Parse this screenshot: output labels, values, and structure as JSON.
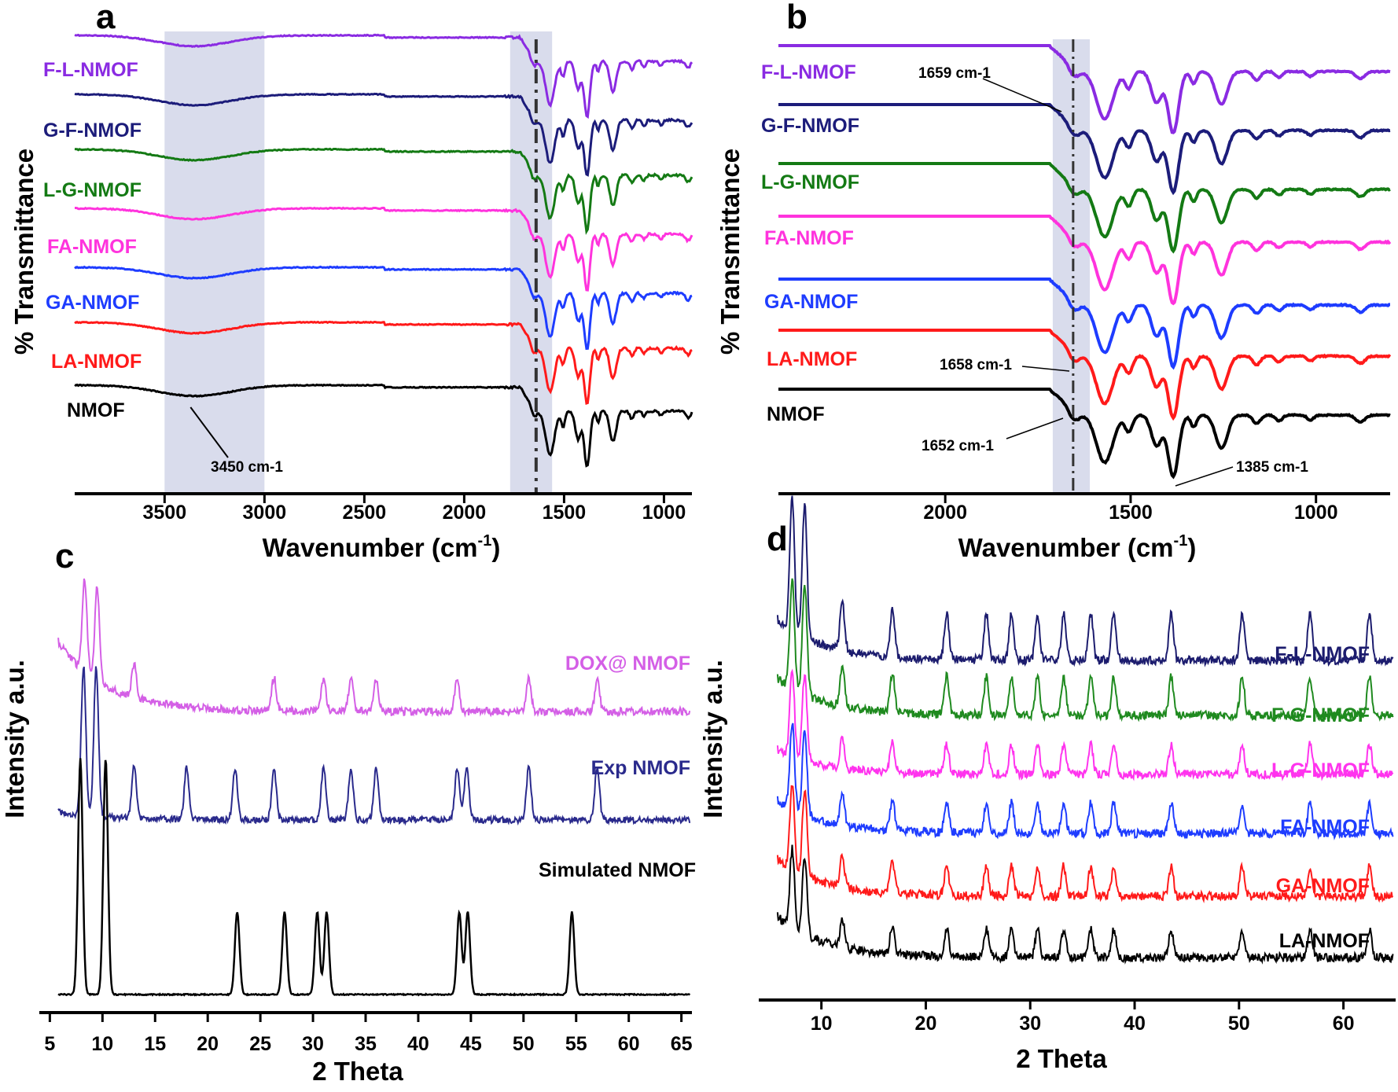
{
  "chart_data": [
    {
      "panel": "a",
      "type": "line",
      "xlabel": "Wavenumber (cm-1)",
      "ylabel": "% Transmittance",
      "xlim": [
        3950,
        860
      ],
      "x_reversed": true,
      "x_ticks": [
        3500,
        3000,
        2500,
        2000,
        1500,
        1000
      ],
      "shaded_regions": [
        [
          3500,
          3000
        ],
        [
          1770,
          1560
        ]
      ],
      "dashed_line_x": 1640,
      "annotations": [
        {
          "text": "3450 cm-1",
          "x": 3370,
          "series": "NMOF"
        }
      ],
      "series": [
        {
          "name": "F-L-NMOF",
          "color": "#8a2be2"
        },
        {
          "name": "G-F-NMOF",
          "color": "#1c1c7a"
        },
        {
          "name": "L-G-NMOF",
          "color": "#147a14"
        },
        {
          "name": "FA-NMOF",
          "color": "#ff33dd"
        },
        {
          "name": "GA-NMOF",
          "color": "#1e3cff"
        },
        {
          "name": "LA-NMOF",
          "color": "#ff1a1a"
        },
        {
          "name": "NMOF",
          "color": "#000000"
        }
      ]
    },
    {
      "panel": "b",
      "type": "line",
      "xlabel": "Wavenumber (cm-1)",
      "ylabel": "% Transmittance",
      "xlim": [
        2450,
        800
      ],
      "x_reversed": true,
      "x_ticks": [
        2000,
        1500,
        1000
      ],
      "shaded_regions": [
        [
          1710,
          1610
        ]
      ],
      "dashed_line_x": 1655,
      "annotations": [
        {
          "text": "1659 cm-1",
          "x": 1659,
          "series": "F-L-NMOF"
        },
        {
          "text": "1658 cm-1",
          "x": 1658,
          "series": "LA-NMOF"
        },
        {
          "text": "1652 cm-1",
          "x": 1652,
          "series": "NMOF"
        },
        {
          "text": "1385 cm-1",
          "x": 1385,
          "series": "NMOF"
        }
      ],
      "series": [
        {
          "name": "F-L-NMOF",
          "color": "#8a2be2"
        },
        {
          "name": "G-F-NMOF",
          "color": "#1c1c7a"
        },
        {
          "name": "L-G-NMOF",
          "color": "#147a14"
        },
        {
          "name": "FA-NMOF",
          "color": "#ff33dd"
        },
        {
          "name": "GA-NMOF",
          "color": "#1e3cff"
        },
        {
          "name": "LA-NMOF",
          "color": "#ff1a1a"
        },
        {
          "name": "NMOF",
          "color": "#000000"
        }
      ]
    },
    {
      "panel": "c",
      "type": "line",
      "xlabel": "2 Theta",
      "ylabel": "Intensity a.u.",
      "xlim": [
        4,
        66
      ],
      "x_ticks": [
        5,
        10,
        15,
        20,
        25,
        30,
        35,
        40,
        45,
        50,
        55,
        60,
        65
      ],
      "series": [
        {
          "name": "DOX@ NMOF",
          "color": "#d45fe6",
          "peaks": [
            8.3,
            9.5,
            13.0,
            26.3,
            31.0,
            33.6,
            36.0,
            43.7,
            50.5,
            57.0
          ]
        },
        {
          "name": "Exp NMOF",
          "color": "#2a2a8c",
          "peaks": [
            8.2,
            9.4,
            13.0,
            18.0,
            22.6,
            26.3,
            31.0,
            33.6,
            36.0,
            43.7,
            44.6,
            50.5,
            57.0
          ]
        },
        {
          "name": "Simulated NMOF",
          "color": "#000000",
          "peaks": [
            7.9,
            10.3,
            22.8,
            27.3,
            30.4,
            31.3,
            43.9,
            44.7,
            54.6
          ]
        }
      ]
    },
    {
      "panel": "d",
      "type": "line",
      "xlabel": "2 Theta",
      "ylabel": "Intensity a.u.",
      "xlim": [
        4,
        65
      ],
      "x_ticks": [
        10,
        20,
        30,
        40,
        50,
        60
      ],
      "series": [
        {
          "name": "F-L-NMOF",
          "color": "#1c1c6e"
        },
        {
          "name": "F-G-NMOF",
          "color": "#1f8a1f"
        },
        {
          "name": "L-G-NMOF",
          "color": "#ff33ee"
        },
        {
          "name": "FA-NMOF",
          "color": "#1e3cff"
        },
        {
          "name": "GA-NMOF",
          "color": "#ff1a1a"
        },
        {
          "name": "LA-NMOF",
          "color": "#000000"
        }
      ]
    }
  ],
  "panel_labels": [
    "a",
    "b",
    "c",
    "d"
  ],
  "text": {
    "ylabel_ftir": "% Transmittance",
    "ylabel_xrd": "Intensity a.u.",
    "xlabel_ftir_main": "Wavenumber (cm",
    "xlabel_ftir_sup": "-1",
    "xlabel_ftir_end": ")",
    "xlabel_xrd": "2 Theta",
    "cm_sup": "-1"
  }
}
